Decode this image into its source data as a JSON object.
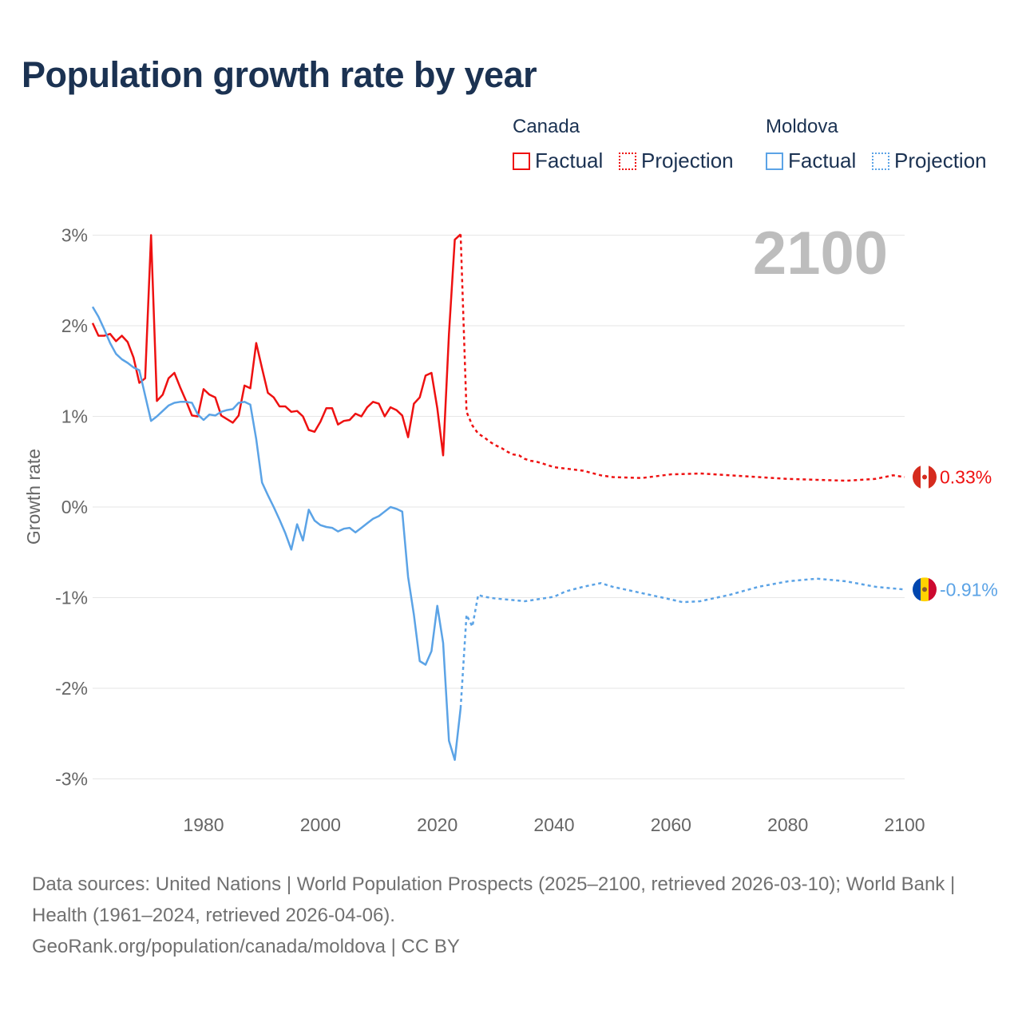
{
  "title": "Population growth rate by year",
  "legend": {
    "groups": [
      {
        "name": "Canada",
        "color": "#ee1111",
        "factual": "Factual",
        "projection": "Projection"
      },
      {
        "name": "Moldova",
        "color": "#5ba3e6",
        "factual": "Factual",
        "projection": "Projection"
      }
    ]
  },
  "source": {
    "line1": "Data sources: United Nations | World Population Prospects (2025–2100, retrieved 2026-03-10); World Bank | Health (1961–2024, retrieved 2026-04-06).",
    "line2": "GeoRank.org/population/canada/moldova | CC BY"
  },
  "chart_data": {
    "type": "line",
    "title": "Population growth rate by year",
    "ylabel": "Growth rate",
    "xlim": [
      1961,
      2100
    ],
    "ylim": [
      -3.3,
      3.3
    ],
    "yticks": [
      3,
      2,
      1,
      0,
      -1,
      -2,
      -3
    ],
    "ytick_labels": [
      "3%",
      "2%",
      "1%",
      "0%",
      "-1%",
      "-2%",
      "-3%"
    ],
    "xticks": [
      1980,
      2000,
      2020,
      2040,
      2060,
      2080,
      2100
    ],
    "year_label": "2100",
    "grid": true,
    "series": [
      {
        "name": "Canada",
        "color": "#ee1111",
        "end_label": "0.33%",
        "factual_start": 1961,
        "factual": [
          2.03,
          1.89,
          1.89,
          1.91,
          1.83,
          1.89,
          1.82,
          1.65,
          1.37,
          1.42,
          3.0,
          1.17,
          1.24,
          1.42,
          1.48,
          1.32,
          1.17,
          1.01,
          1.0,
          1.3,
          1.24,
          1.21,
          1.01,
          0.97,
          0.93,
          1.01,
          1.34,
          1.31,
          1.81,
          1.53,
          1.26,
          1.21,
          1.11,
          1.11,
          1.05,
          1.06,
          1.0,
          0.85,
          0.83,
          0.94,
          1.09,
          1.09,
          0.91,
          0.95,
          0.96,
          1.03,
          1.0,
          1.1,
          1.16,
          1.14,
          1.0,
          1.1,
          1.07,
          1.01,
          0.77,
          1.14,
          1.21,
          1.45,
          1.48,
          1.09,
          0.57,
          1.91,
          2.95,
          3.01
        ],
        "projection": [
          [
            2024,
            3.01
          ],
          [
            2025,
            1.05
          ],
          [
            2026,
            0.9
          ],
          [
            2027,
            0.81
          ],
          [
            2028,
            0.77
          ],
          [
            2029,
            0.72
          ],
          [
            2030,
            0.68
          ],
          [
            2031,
            0.65
          ],
          [
            2032,
            0.61
          ],
          [
            2033,
            0.58
          ],
          [
            2034,
            0.57
          ],
          [
            2035,
            0.53
          ],
          [
            2036,
            0.51
          ],
          [
            2037,
            0.5
          ],
          [
            2038,
            0.48
          ],
          [
            2039,
            0.46
          ],
          [
            2040,
            0.44
          ],
          [
            2045,
            0.4
          ],
          [
            2048,
            0.35
          ],
          [
            2050,
            0.33
          ],
          [
            2055,
            0.32
          ],
          [
            2060,
            0.36
          ],
          [
            2065,
            0.37
          ],
          [
            2070,
            0.35
          ],
          [
            2075,
            0.33
          ],
          [
            2080,
            0.31
          ],
          [
            2085,
            0.3
          ],
          [
            2090,
            0.29
          ],
          [
            2095,
            0.31
          ],
          [
            2098,
            0.35
          ],
          [
            2100,
            0.33
          ]
        ]
      },
      {
        "name": "Moldova",
        "color": "#5ba3e6",
        "end_label": "-0.91%",
        "factual_start": 1961,
        "factual": [
          2.21,
          2.1,
          1.96,
          1.81,
          1.69,
          1.63,
          1.59,
          1.54,
          1.51,
          1.23,
          0.95,
          1.0,
          1.06,
          1.12,
          1.15,
          1.16,
          1.16,
          1.15,
          1.02,
          0.96,
          1.02,
          1.01,
          1.05,
          1.07,
          1.08,
          1.15,
          1.16,
          1.13,
          0.75,
          0.27,
          0.13,
          0.0,
          -0.14,
          -0.29,
          -0.47,
          -0.19,
          -0.37,
          -0.03,
          -0.15,
          -0.2,
          -0.22,
          -0.23,
          -0.27,
          -0.24,
          -0.23,
          -0.28,
          -0.23,
          -0.18,
          -0.13,
          -0.1,
          -0.05,
          0.0,
          -0.02,
          -0.05,
          -0.77,
          -1.19,
          -1.7,
          -1.74,
          -1.59,
          -1.09,
          -1.5,
          -2.58,
          -2.79,
          -2.22
        ],
        "projection": [
          [
            2024,
            -2.22
          ],
          [
            2025,
            -1.19
          ],
          [
            2026,
            -1.32
          ],
          [
            2027,
            -0.97
          ],
          [
            2028,
            -0.99
          ],
          [
            2030,
            -1.01
          ],
          [
            2035,
            -1.04
          ],
          [
            2040,
            -0.99
          ],
          [
            2042,
            -0.93
          ],
          [
            2045,
            -0.88
          ],
          [
            2048,
            -0.84
          ],
          [
            2050,
            -0.88
          ],
          [
            2055,
            -0.95
          ],
          [
            2060,
            -1.02
          ],
          [
            2062,
            -1.05
          ],
          [
            2065,
            -1.04
          ],
          [
            2070,
            -0.97
          ],
          [
            2075,
            -0.88
          ],
          [
            2080,
            -0.82
          ],
          [
            2085,
            -0.79
          ],
          [
            2090,
            -0.82
          ],
          [
            2095,
            -0.88
          ],
          [
            2100,
            -0.91
          ]
        ]
      }
    ]
  }
}
